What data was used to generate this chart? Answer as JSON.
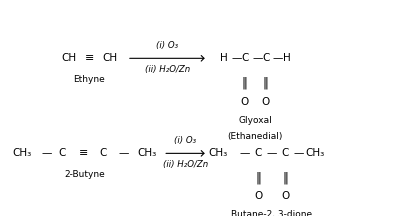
{
  "bg_color": "#ffffff",
  "fig_width": 4.03,
  "fig_height": 2.16,
  "dpi": 100,
  "xlim": [
    0,
    10
  ],
  "ylim": [
    0,
    10
  ],
  "r1_reactant_ch1": "CH",
  "r1_reactant_triple": "≡",
  "r1_reactant_ch2": "CH",
  "r1_reactant_label": "Ethyne",
  "r1_arrow_top": "(i) O₃",
  "r1_arrow_bot": "(ii) H₂O/Zn",
  "r1_prod_H1": "H",
  "r1_prod_dash1": "—",
  "r1_prod_C1": "C",
  "r1_prod_dash2": "—",
  "r1_prod_C2": "C",
  "r1_prod_dash3": "—",
  "r1_prod_H2": "H",
  "r1_prod_dbl1": "‖",
  "r1_prod_O1": "O",
  "r1_prod_dbl2": "‖",
  "r1_prod_O2": "O",
  "r1_prod_label1": "Glyoxal",
  "r1_prod_label2": "(Ethanedial)",
  "r2_ch3_1": "CH₃",
  "r2_dash1": "—",
  "r2_C1": "C",
  "r2_triple": "≡",
  "r2_C2": "C",
  "r2_dash2": "—",
  "r2_ch3_2": "CH₃",
  "r2_reactant_label": "2-Butyne",
  "r2_arrow_top": "(i) O₃",
  "r2_arrow_bot": "(ii) H₂O/Zn",
  "r2_prod_ch3_1": "CH₃",
  "r2_prod_dash1": "—",
  "r2_prod_C1": "C",
  "r2_prod_dash2": "—",
  "r2_prod_C2": "C",
  "r2_prod_dash3": "—",
  "r2_prod_ch3_2": "CH₃",
  "r2_prod_dbl1": "‖",
  "r2_prod_O1": "O",
  "r2_prod_dbl2": "‖",
  "r2_prod_O2": "O",
  "r2_prod_label": "Butane-2, 3-dione"
}
